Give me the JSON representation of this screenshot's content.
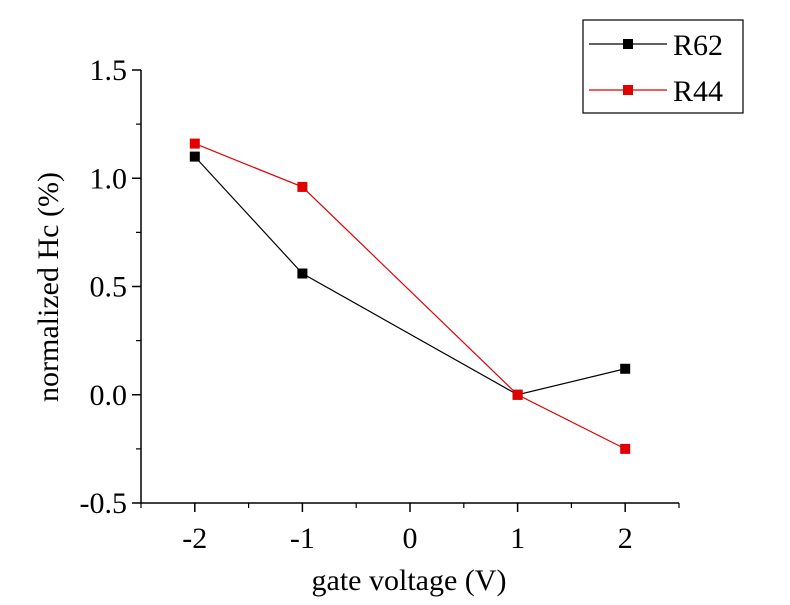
{
  "chart_data": {
    "type": "line",
    "title": "",
    "xlabel": "gate voltage (V)",
    "ylabel": "normalized Hc (%)",
    "x": [
      -2,
      -1,
      1,
      2
    ],
    "xlim": [
      -2.5,
      2.5
    ],
    "ylim": [
      -0.5,
      1.5
    ],
    "xticks": [
      -2,
      -1,
      0,
      1,
      2
    ],
    "xtick_labels": [
      "-2",
      "-1",
      "0",
      "1",
      "2"
    ],
    "yticks": [
      -0.5,
      0.0,
      0.5,
      1.0,
      1.5
    ],
    "ytick_labels": [
      "-0.5",
      "0.0",
      "0.5",
      "1.0",
      "1.5"
    ],
    "grid": false,
    "legend_position": "top-right",
    "series": [
      {
        "name": "R62",
        "color": "#000000",
        "values": [
          1.1,
          0.56,
          0.0,
          0.12
        ]
      },
      {
        "name": "R44",
        "color": "#e00000",
        "values": [
          1.16,
          0.96,
          0.0,
          -0.25
        ]
      }
    ]
  }
}
